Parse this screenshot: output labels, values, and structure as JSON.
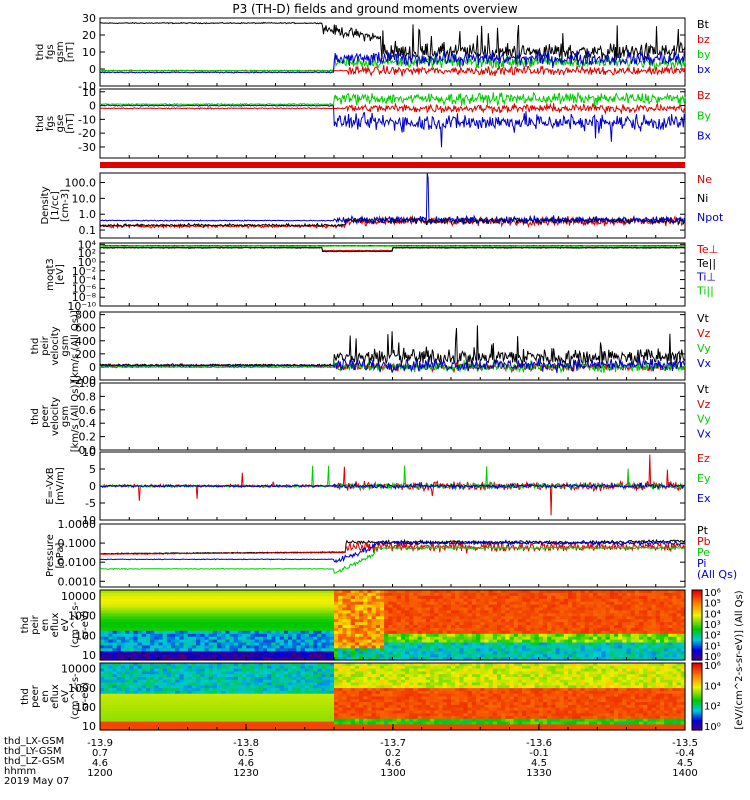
{
  "title": "P3 (TH-D) fields and ground moments overview",
  "colors": {
    "black": "#000000",
    "red": "#e00000",
    "green": "#00cc00",
    "blue": "#0000cc",
    "white": "#ffffff"
  },
  "chart_data": [
    {
      "type": "line",
      "name": "thd_fgs_gsm",
      "ylabel_lines": [
        "thd",
        "fgs",
        "gsm",
        "[nT]"
      ],
      "ylim": [
        -10,
        30
      ],
      "yticks": [
        "30",
        "20",
        "10",
        "0",
        "-10"
      ],
      "tickvals": [
        30,
        20,
        10,
        0,
        -10
      ],
      "log": false,
      "series": [
        {
          "name": "Bt",
          "color": "black"
        },
        {
          "name": "bz",
          "color": "red"
        },
        {
          "name": "by",
          "color": "green"
        },
        {
          "name": "bx",
          "color": "blue"
        }
      ]
    },
    {
      "type": "line",
      "name": "thd_fgs_gse",
      "ylabel_lines": [
        "thd",
        "fgs",
        "gse",
        "[nT]"
      ],
      "ylim": [
        -38,
        12
      ],
      "yticks": [
        "10",
        "0",
        "-10",
        "-20",
        "-30"
      ],
      "tickvals": [
        10,
        0,
        -10,
        -20,
        -30
      ],
      "log": false,
      "series": [
        {
          "name": "Bz",
          "color": "red"
        },
        {
          "name": "By",
          "color": "green"
        },
        {
          "name": "Bx",
          "color": "blue"
        }
      ]
    },
    {
      "type": "line",
      "name": "density",
      "ylabel_lines": [
        "Density",
        "[1/cc]",
        "[cm-3]"
      ],
      "ylim": [
        -1.5,
        2.6
      ],
      "yticks": [
        "100.0",
        "10.0",
        "1.0",
        "0.1"
      ],
      "tickvals": [
        2,
        1,
        0,
        -1
      ],
      "log": true,
      "series": [
        {
          "name": "Ne",
          "color": "red"
        },
        {
          "name": "Ni",
          "color": "black"
        },
        {
          "name": "Npot",
          "color": "blue"
        }
      ]
    },
    {
      "type": "line",
      "name": "temperature",
      "ylabel_lines": [
        "moqt3",
        "[eV]"
      ],
      "ylim": [
        -10,
        4.3
      ],
      "yticks": [
        "10⁴",
        "10²",
        "10⁰",
        "10⁻²",
        "10⁻⁴",
        "10⁻⁶",
        "10⁻⁸",
        "10⁻¹⁰"
      ],
      "tickvals": [
        4,
        2,
        0,
        -2,
        -4,
        -6,
        -8,
        -10
      ],
      "log": true,
      "series": [
        {
          "name": "Te⊥",
          "color": "red"
        },
        {
          "name": "Te||",
          "color": "black"
        },
        {
          "name": "Ti⊥",
          "color": "blue"
        },
        {
          "name": "Ti||",
          "color": "green"
        }
      ]
    },
    {
      "type": "line",
      "name": "thd_peir_velocity",
      "ylabel_lines": [
        "thd",
        "peir",
        "velocity",
        "gsm",
        "[km/s (All Qs)]"
      ],
      "ylim": [
        -200,
        840
      ],
      "yticks": [
        "800",
        "600",
        "400",
        "200",
        "0",
        "-200"
      ],
      "tickvals": [
        800,
        600,
        400,
        200,
        0,
        -200
      ],
      "log": false,
      "series": [
        {
          "name": "Vt",
          "color": "black"
        },
        {
          "name": "Vz",
          "color": "red"
        },
        {
          "name": "Vy",
          "color": "green"
        },
        {
          "name": "Vx",
          "color": "blue"
        }
      ]
    },
    {
      "type": "line",
      "name": "thd_peer_velocity",
      "ylabel_lines": [
        "thd",
        "peer",
        "velocity",
        "gsm",
        "[km/s (All Qs)]"
      ],
      "ylim": [
        0,
        1
      ],
      "yticks": [
        "1.0",
        "0.8",
        "0.6",
        "0.4",
        "0.2",
        "0.0"
      ],
      "tickvals": [
        1,
        0.8,
        0.6,
        0.4,
        0.2,
        0
      ],
      "log": false,
      "series": [
        {
          "name": "Vt",
          "color": "black"
        },
        {
          "name": "Vz",
          "color": "red"
        },
        {
          "name": "Vy",
          "color": "green"
        },
        {
          "name": "Vx",
          "color": "blue"
        }
      ]
    },
    {
      "type": "line",
      "name": "efield",
      "ylabel_lines": [
        "E=-VxB",
        "[mV/m]"
      ],
      "ylim": [
        -10,
        10
      ],
      "yticks": [
        "10",
        "5",
        "0",
        "-5",
        "-10"
      ],
      "tickvals": [
        10,
        5,
        0,
        -5,
        -10
      ],
      "log": false,
      "series": [
        {
          "name": "Ez",
          "color": "red"
        },
        {
          "name": "Ey",
          "color": "green"
        },
        {
          "name": "Ex",
          "color": "blue"
        }
      ]
    },
    {
      "type": "line",
      "name": "pressure",
      "ylabel_lines": [
        "Pressure",
        "[nPa]"
      ],
      "ylim": [
        -3.3,
        0
      ],
      "yticks": [
        "1.0000",
        "0.1000",
        "0.0100",
        "0.0010",
        "0.0001"
      ],
      "tickvals": [
        0,
        -1,
        -2,
        -3,
        -4
      ],
      "log": true,
      "series": [
        {
          "name": "Pt",
          "color": "black"
        },
        {
          "name": "Pb",
          "color": "red"
        },
        {
          "name": "Pe",
          "color": "green"
        },
        {
          "name": "Pi",
          "color": "blue"
        },
        {
          "name": "(All Qs)",
          "color": "blue"
        }
      ]
    },
    {
      "type": "heatmap",
      "name": "thd_peir_en_eflux",
      "ylabel_lines": [
        "thd",
        "peir",
        "en",
        "eflux",
        "eV",
        "(cm^2-s-",
        "sr-eV)"
      ],
      "ylim": [
        0.75,
        4.3
      ],
      "yticks": [
        "10000",
        "1000",
        "100",
        "10"
      ],
      "tickvals": [
        4,
        3,
        2,
        1
      ],
      "log": true
    },
    {
      "type": "heatmap",
      "name": "thd_peer_en_eflux",
      "ylabel_lines": [
        "thd",
        "peer",
        "en",
        "eflux",
        "eV",
        "(cm^2-s-",
        "sr-eV)"
      ],
      "ylim": [
        0.8,
        4.3
      ],
      "yticks": [
        "10000",
        "1000",
        "100",
        "10"
      ],
      "tickvals": [
        4,
        3,
        2,
        1
      ],
      "log": true
    }
  ],
  "colorbars": [
    {
      "ticks": [
        "10⁶",
        "10⁵",
        "10⁴",
        "10³",
        "10²",
        "10¹",
        "10⁰"
      ]
    },
    {
      "ticks": [
        "10⁶",
        "10⁴",
        "10²",
        "10⁰"
      ]
    }
  ],
  "colorbar_label": "[eV/(cm^2-s-sr-eV)] (All Qs)",
  "x_axis": {
    "rows": [
      {
        "label": "thd_LX-GSM",
        "values": [
          "-13.9",
          "-13.8",
          "-13.7",
          "-13.6",
          "-13.5"
        ]
      },
      {
        "label": "thd_LY-GSM",
        "values": [
          "0.7",
          "0.5",
          "0.2",
          "-0.1",
          "-0.4"
        ]
      },
      {
        "label": "thd_LZ-GSM",
        "values": [
          "4.6",
          "4.6",
          "4.6",
          "4.5",
          "4.5"
        ]
      },
      {
        "label": "hhmm",
        "values": [
          "1200",
          "1230",
          "1300",
          "1330",
          "1400"
        ]
      }
    ],
    "date": "2019 May 07"
  }
}
